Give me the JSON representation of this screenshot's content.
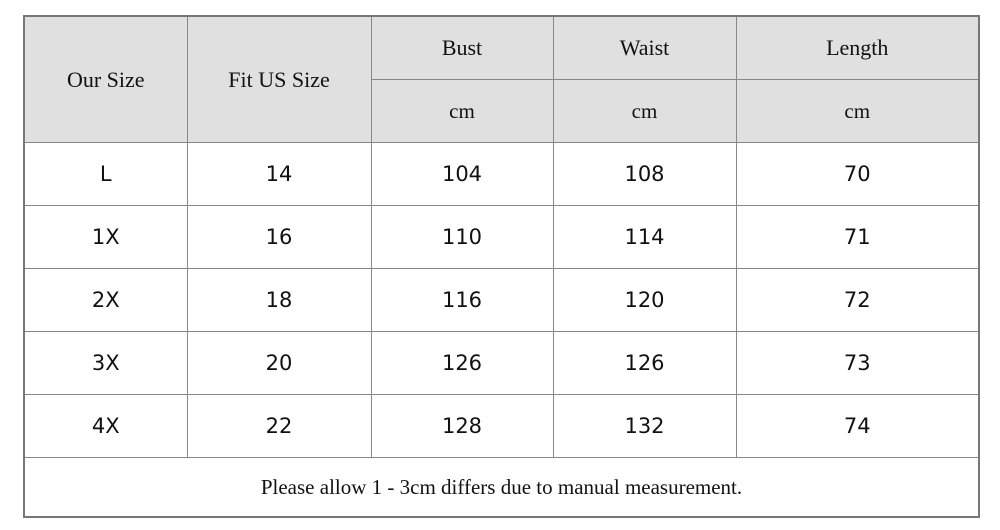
{
  "header": {
    "columns": [
      "Our Size",
      "Fit US Size",
      "Bust",
      "Waist",
      "Length"
    ],
    "units": [
      "cm",
      "cm",
      "cm"
    ]
  },
  "table": {
    "rows": [
      [
        "L",
        14,
        104,
        108,
        70
      ],
      [
        "1X",
        16,
        110,
        114,
        71
      ],
      [
        "2X",
        18,
        116,
        120,
        72
      ],
      [
        "3X",
        20,
        126,
        126,
        73
      ],
      [
        "4X",
        22,
        128,
        132,
        74
      ]
    ]
  },
  "note": "Please allow 1 - 3cm differs due to manual measurement."
}
